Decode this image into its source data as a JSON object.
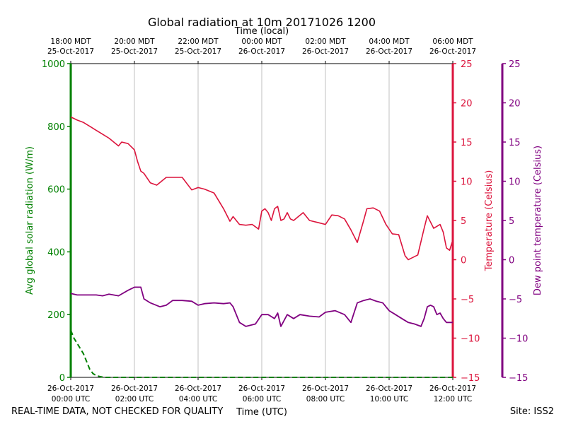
{
  "chart_data": {
    "type": "line",
    "title": "Global radiation at 10m 20171026 1200",
    "top_axis_label": "Time (local)",
    "xlabel": "Time (UTC)",
    "top_ticks": [
      [
        "18:00 MDT",
        "25-Oct-2017"
      ],
      [
        "20:00 MDT",
        "25-Oct-2017"
      ],
      [
        "22:00 MDT",
        "25-Oct-2017"
      ],
      [
        "00:00 MDT",
        "26-Oct-2017"
      ],
      [
        "02:00 MDT",
        "26-Oct-2017"
      ],
      [
        "04:00 MDT",
        "26-Oct-2017"
      ],
      [
        "06:00 MDT",
        "26-Oct-2017"
      ]
    ],
    "bottom_ticks": [
      [
        "26-Oct-2017",
        "00:00 UTC"
      ],
      [
        "26-Oct-2017",
        "02:00 UTC"
      ],
      [
        "26-Oct-2017",
        "04:00 UTC"
      ],
      [
        "26-Oct-2017",
        "06:00 UTC"
      ],
      [
        "26-Oct-2017",
        "08:00 UTC"
      ],
      [
        "26-Oct-2017",
        "10:00 UTC"
      ],
      [
        "26-Oct-2017",
        "12:00 UTC"
      ]
    ],
    "xlim_hours": [
      0,
      12
    ],
    "axes": {
      "radiation": {
        "label": "Avg global solar radiation (W/m)",
        "ylim": [
          0,
          1000
        ],
        "ticks": [
          0,
          200,
          400,
          600,
          800,
          1000
        ],
        "color": "#008000"
      },
      "temperature": {
        "label": "Temperature (Celsius)",
        "ylim": [
          -15,
          25
        ],
        "ticks": [
          -15,
          -10,
          -5,
          0,
          5,
          10,
          15,
          20,
          25
        ],
        "tick_labels": [
          "−15",
          "−10",
          "−5",
          "0",
          "5",
          "10",
          "15",
          "20",
          "25"
        ],
        "color": "#dc143c"
      },
      "dewpoint": {
        "label": "Dew point temperature (Celsius)",
        "ylim": [
          -15,
          25
        ],
        "ticks": [
          -15,
          -10,
          -5,
          0,
          5,
          10,
          15,
          20,
          25
        ],
        "tick_labels": [
          "−15",
          "−10",
          "−5",
          "0",
          "5",
          "10",
          "15",
          "20",
          "25"
        ],
        "color": "#800080"
      }
    },
    "series": [
      {
        "name": "Global radiation",
        "axis": "radiation",
        "x": [
          0,
          0.1,
          0.25,
          0.4,
          0.5,
          0.6,
          0.7,
          0.8,
          0.9,
          1.0,
          1.1,
          1.2,
          1.5,
          2,
          3,
          4,
          5,
          6,
          7,
          8,
          9,
          10,
          11,
          12
        ],
        "values": [
          150,
          125,
          100,
          75,
          50,
          25,
          12,
          6,
          3,
          1,
          0,
          0,
          0,
          0,
          0,
          0,
          0,
          0,
          0,
          0,
          0,
          0,
          0,
          0
        ]
      },
      {
        "name": "Temperature",
        "axis": "temperature",
        "x": [
          0,
          0.2,
          0.4,
          0.6,
          0.8,
          1.0,
          1.2,
          1.5,
          1.6,
          1.8,
          2.0,
          2.1,
          2.2,
          2.3,
          2.5,
          2.7,
          3.0,
          3.2,
          3.5,
          3.8,
          4.0,
          4.2,
          4.5,
          4.8,
          5.0,
          5.1,
          5.3,
          5.5,
          5.7,
          5.9,
          6.0,
          6.1,
          6.2,
          6.3,
          6.4,
          6.5,
          6.6,
          6.7,
          6.8,
          6.9,
          7.0,
          7.3,
          7.5,
          7.8,
          8.0,
          8.2,
          8.4,
          8.6,
          8.8,
          9.0,
          9.2,
          9.3,
          9.5,
          9.7,
          9.9,
          10.1,
          10.3,
          10.5,
          10.6,
          10.7,
          10.9,
          11.1,
          11.2,
          11.4,
          11.6,
          11.7,
          11.8,
          11.9,
          12.0
        ],
        "values": [
          18.2,
          17.8,
          17.5,
          17.0,
          16.5,
          16.0,
          15.5,
          14.5,
          15.0,
          14.8,
          14.0,
          12.5,
          11.3,
          11.0,
          9.8,
          9.5,
          10.5,
          10.5,
          10.5,
          8.9,
          9.2,
          9.0,
          8.5,
          6.5,
          4.9,
          5.5,
          4.5,
          4.4,
          4.5,
          3.9,
          6.2,
          6.5,
          6.0,
          5.0,
          6.5,
          6.8,
          5.0,
          5.2,
          6.0,
          5.2,
          5.0,
          6.0,
          5.0,
          4.7,
          4.5,
          5.7,
          5.6,
          5.2,
          3.8,
          2.2,
          5.0,
          6.5,
          6.6,
          6.2,
          4.5,
          3.3,
          3.2,
          0.5,
          0.0,
          0.2,
          0.6,
          4.0,
          5.6,
          4.0,
          4.5,
          3.5,
          1.5,
          1.2,
          2.5
        ]
      },
      {
        "name": "Dew point",
        "axis": "dewpoint",
        "x": [
          0,
          0.2,
          0.5,
          0.8,
          1.0,
          1.2,
          1.5,
          1.8,
          2.0,
          2.2,
          2.3,
          2.5,
          2.8,
          3.0,
          3.2,
          3.5,
          3.8,
          4.0,
          4.2,
          4.5,
          4.8,
          5.0,
          5.1,
          5.3,
          5.5,
          5.8,
          6.0,
          6.2,
          6.4,
          6.5,
          6.6,
          6.8,
          7.0,
          7.2,
          7.5,
          7.8,
          8.0,
          8.3,
          8.6,
          8.8,
          9.0,
          9.2,
          9.4,
          9.6,
          9.8,
          10.0,
          10.2,
          10.4,
          10.6,
          10.8,
          11.0,
          11.1,
          11.2,
          11.3,
          11.4,
          11.5,
          11.6,
          11.7,
          11.8,
          11.9,
          12.0
        ],
        "values": [
          -4.3,
          -4.5,
          -4.5,
          -4.5,
          -4.6,
          -4.4,
          -4.6,
          -3.9,
          -3.5,
          -3.5,
          -5.0,
          -5.5,
          -6.0,
          -5.8,
          -5.2,
          -5.2,
          -5.3,
          -5.8,
          -5.6,
          -5.5,
          -5.6,
          -5.5,
          -6.0,
          -8.0,
          -8.5,
          -8.2,
          -7.0,
          -7.0,
          -7.5,
          -6.8,
          -8.5,
          -7.0,
          -7.5,
          -7.0,
          -7.2,
          -7.3,
          -6.7,
          -6.5,
          -7.0,
          -8.0,
          -5.5,
          -5.2,
          -5.0,
          -5.3,
          -5.5,
          -6.5,
          -7.0,
          -7.5,
          -8.0,
          -8.2,
          -8.5,
          -7.5,
          -6.0,
          -5.8,
          -6.0,
          -7.0,
          -6.8,
          -7.5,
          -8.0,
          -8.0,
          -8.0
        ]
      }
    ]
  },
  "footer": {
    "left": "REAL-TIME DATA, NOT CHECKED FOR QUALITY",
    "right": "Site: ISS2"
  }
}
